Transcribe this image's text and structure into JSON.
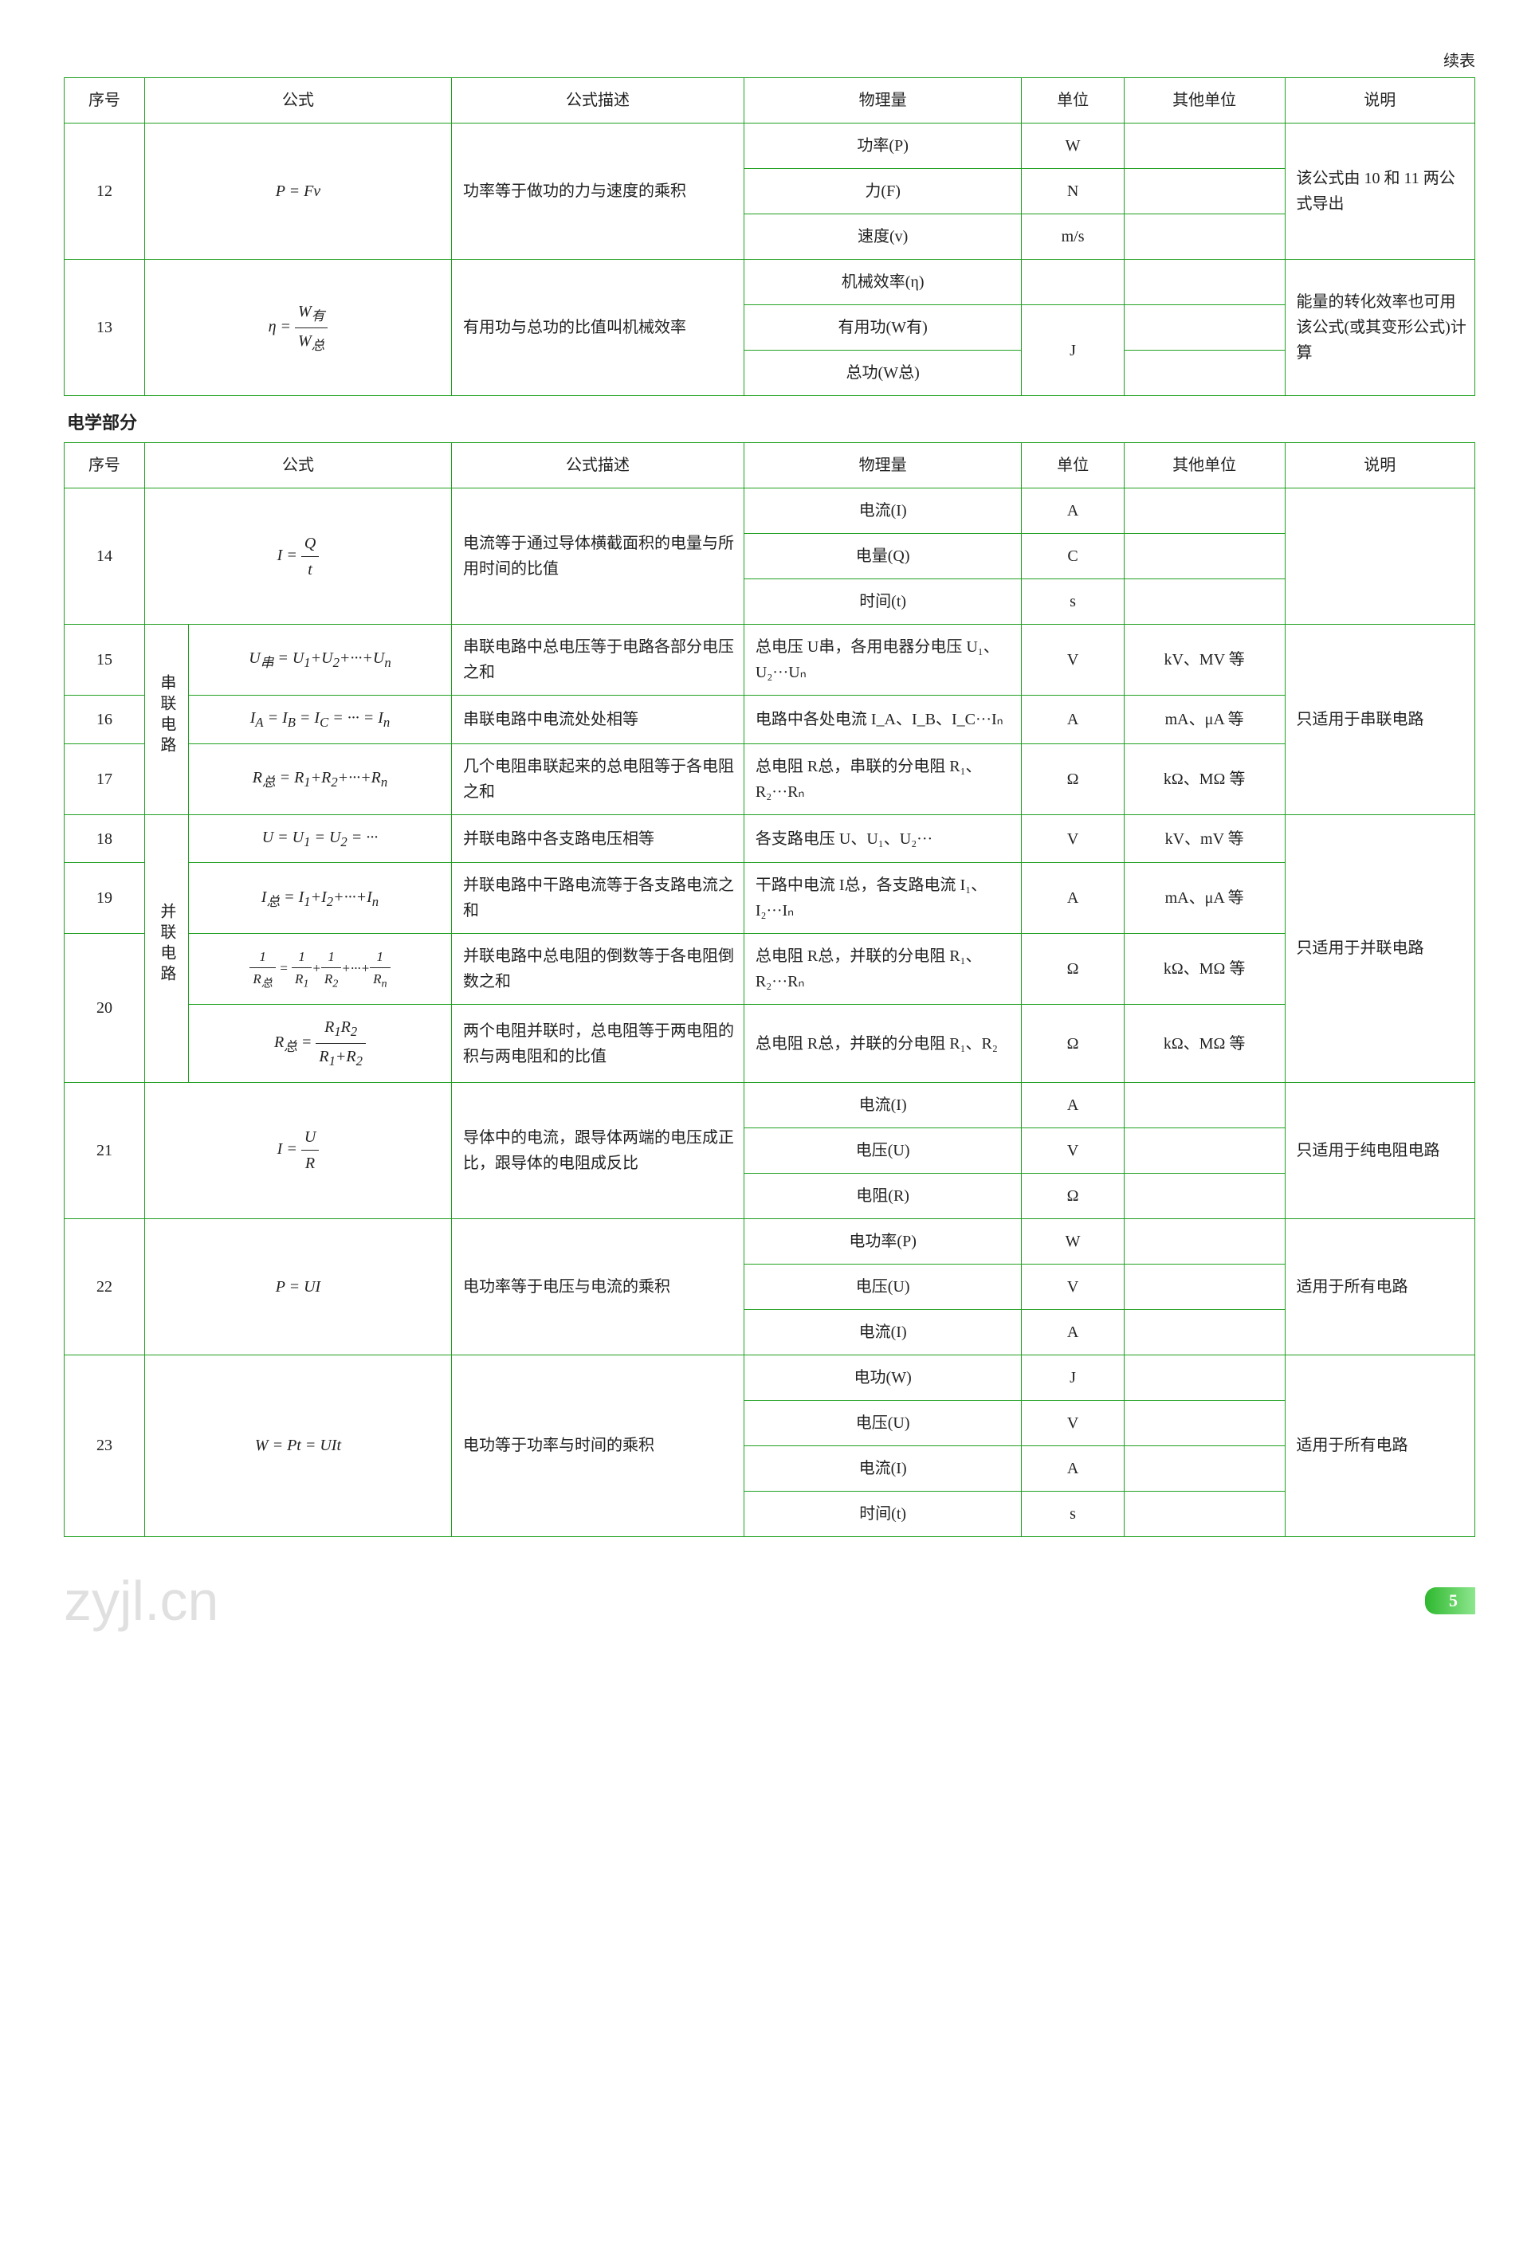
{
  "continuation_label": "续表",
  "headers": {
    "seq": "序号",
    "formula": "公式",
    "desc": "公式描述",
    "qty": "物理量",
    "unit": "单位",
    "other": "其他单位",
    "note": "说明"
  },
  "section_title": "电学部分",
  "table1": {
    "rows": [
      {
        "seq": "12",
        "formula_html": "<i>P</i> = <i>Fv</i>",
        "desc": "功率等于做功的力与速度的乘积",
        "qtys": [
          {
            "q": "功率(P)",
            "unit": "W",
            "other": ""
          },
          {
            "q": "力(F)",
            "unit": "N",
            "other": ""
          },
          {
            "q": "速度(v)",
            "unit": "m/s",
            "other": ""
          }
        ],
        "note": "该公式由 10 和 11 两公式导出"
      },
      {
        "seq": "13",
        "formula_html": "<i>η</i> = <span class='frac'><span class='num'><i>W</i><sub>有</sub></span><span class='den'><i>W</i><sub>总</sub></span></span>",
        "desc": "有用功与总功的比值叫机械效率",
        "qtys": [
          {
            "q": "机械效率(η)",
            "unit": "",
            "other": ""
          },
          {
            "q": "有用功(W有)",
            "unit": "J",
            "other": "",
            "unit_rowspan": 2
          },
          {
            "q": "总功(W总)"
          }
        ],
        "note": "能量的转化效率也可用该公式(或其变形公式)计算"
      }
    ]
  },
  "table2": {
    "rows_14": {
      "seq": "14",
      "formula_html": "<i>I</i> = <span class='frac'><span class='num'><i>Q</i></span><span class='den'><i>t</i></span></span>",
      "desc": "电流等于通过导体横截面积的电量与所用时间的比值",
      "qtys": [
        {
          "q": "电流(I)",
          "unit": "A"
        },
        {
          "q": "电量(Q)",
          "unit": "C"
        },
        {
          "q": "时间(t)",
          "unit": "s"
        }
      ]
    },
    "series_group_label": "串联电路",
    "series_note": "只适用于串联电路",
    "series": [
      {
        "seq": "15",
        "formula_html": "<i>U</i><sub>串</sub> = <i>U</i><sub>1</sub>+<i>U</i><sub>2</sub>+···+<i>U</i><sub>n</sub>",
        "desc": "串联电路中总电压等于电路各部分电压之和",
        "qty": "总电压 U串，各用电器分电压 U₁、U₂···Uₙ",
        "unit": "V",
        "other": "kV、MV 等"
      },
      {
        "seq": "16",
        "formula_html": "<i>I</i><sub>A</sub> = <i>I</i><sub>B</sub> = <i>I</i><sub>C</sub> = ··· = <i>I</i><sub>n</sub>",
        "desc": "串联电路中电流处处相等",
        "qty": "电路中各处电流 I_A、I_B、I_C···Iₙ",
        "unit": "A",
        "other": "mA、μA 等"
      },
      {
        "seq": "17",
        "formula_html": "<i>R</i><sub>总</sub> = <i>R</i><sub>1</sub>+<i>R</i><sub>2</sub>+···+<i>R</i><sub>n</sub>",
        "desc": "几个电阻串联起来的总电阻等于各电阻之和",
        "qty": "总电阻 R总，串联的分电阻 R₁、R₂···Rₙ",
        "unit": "Ω",
        "other": "kΩ、MΩ 等"
      }
    ],
    "parallel_group_label": "并联电路",
    "parallel_note": "只适用于并联电路",
    "parallel": [
      {
        "seq": "18",
        "formula_html": "<i>U</i> = <i>U</i><sub>1</sub> = <i>U</i><sub>2</sub> = ···",
        "desc": "并联电路中各支路电压相等",
        "qty": "各支路电压 U、U₁、U₂···",
        "unit": "V",
        "other": "kV、mV 等"
      },
      {
        "seq": "19",
        "formula_html": "<i>I</i><sub>总</sub> = <i>I</i><sub>1</sub>+<i>I</i><sub>2</sub>+···+<i>I</i><sub>n</sub>",
        "desc": "并联电路中干路电流等于各支路电流之和",
        "qty": "干路中电流 I总，各支路电流 I₁、I₂···Iₙ",
        "unit": "A",
        "other": "mA、μA 等"
      },
      {
        "seq": "20",
        "sub": [
          {
            "formula_html": "<span class='frac'><span class='num'>1</span><span class='den'><i>R</i><sub>总</sub></span></span> = <span class='frac'><span class='num'>1</span><span class='den'><i>R</i><sub>1</sub></span></span>+<span class='frac'><span class='num'>1</span><span class='den'><i>R</i><sub>2</sub></span></span>+···+<span class='frac'><span class='num'>1</span><span class='den'><i>R</i><sub>n</sub></span></span>",
            "desc": "并联电路中总电阻的倒数等于各电阻倒数之和",
            "qty": "总电阻 R总，并联的分电阻 R₁、R₂···Rₙ",
            "unit": "Ω",
            "other": "kΩ、MΩ 等"
          },
          {
            "formula_html": "<i>R</i><sub>总</sub> = <span class='frac'><span class='num'><i>R</i><sub>1</sub><i>R</i><sub>2</sub></span><span class='den'><i>R</i><sub>1</sub>+<i>R</i><sub>2</sub></span></span>",
            "desc": "两个电阻并联时，总电阻等于两电阻的积与两电阻和的比值",
            "qty": "总电阻 R总，并联的分电阻 R₁、R₂",
            "unit": "Ω",
            "other": "kΩ、MΩ 等"
          }
        ]
      }
    ],
    "rows_21": {
      "seq": "21",
      "formula_html": "<i>I</i> = <span class='frac'><span class='num'><i>U</i></span><span class='den'><i>R</i></span></span>",
      "desc": "导体中的电流，跟导体两端的电压成正比，跟导体的电阻成反比",
      "qtys": [
        {
          "q": "电流(I)",
          "unit": "A"
        },
        {
          "q": "电压(U)",
          "unit": "V"
        },
        {
          "q": "电阻(R)",
          "unit": "Ω"
        }
      ],
      "note": "只适用于纯电阻电路"
    },
    "rows_22": {
      "seq": "22",
      "formula_html": "<i>P</i> = <i>UI</i>",
      "desc": "电功率等于电压与电流的乘积",
      "qtys": [
        {
          "q": "电功率(P)",
          "unit": "W"
        },
        {
          "q": "电压(U)",
          "unit": "V"
        },
        {
          "q": "电流(I)",
          "unit": "A"
        }
      ],
      "note": "适用于所有电路"
    },
    "rows_23": {
      "seq": "23",
      "formula_html": "<i>W</i> = <i>Pt</i> = <i>UIt</i>",
      "desc": "电功等于功率与时间的乘积",
      "qtys": [
        {
          "q": "电功(W)",
          "unit": "J"
        },
        {
          "q": "电压(U)",
          "unit": "V"
        },
        {
          "q": "电流(I)",
          "unit": "A"
        },
        {
          "q": "时间(t)",
          "unit": "s"
        }
      ],
      "note": "适用于所有电路"
    }
  },
  "watermark_text": "zyjl.cn",
  "page_number": "5",
  "colors": {
    "border": "#20a020",
    "text": "#222222",
    "page_badge_start": "#2eb82e",
    "page_badge_end": "#8ee68e"
  }
}
